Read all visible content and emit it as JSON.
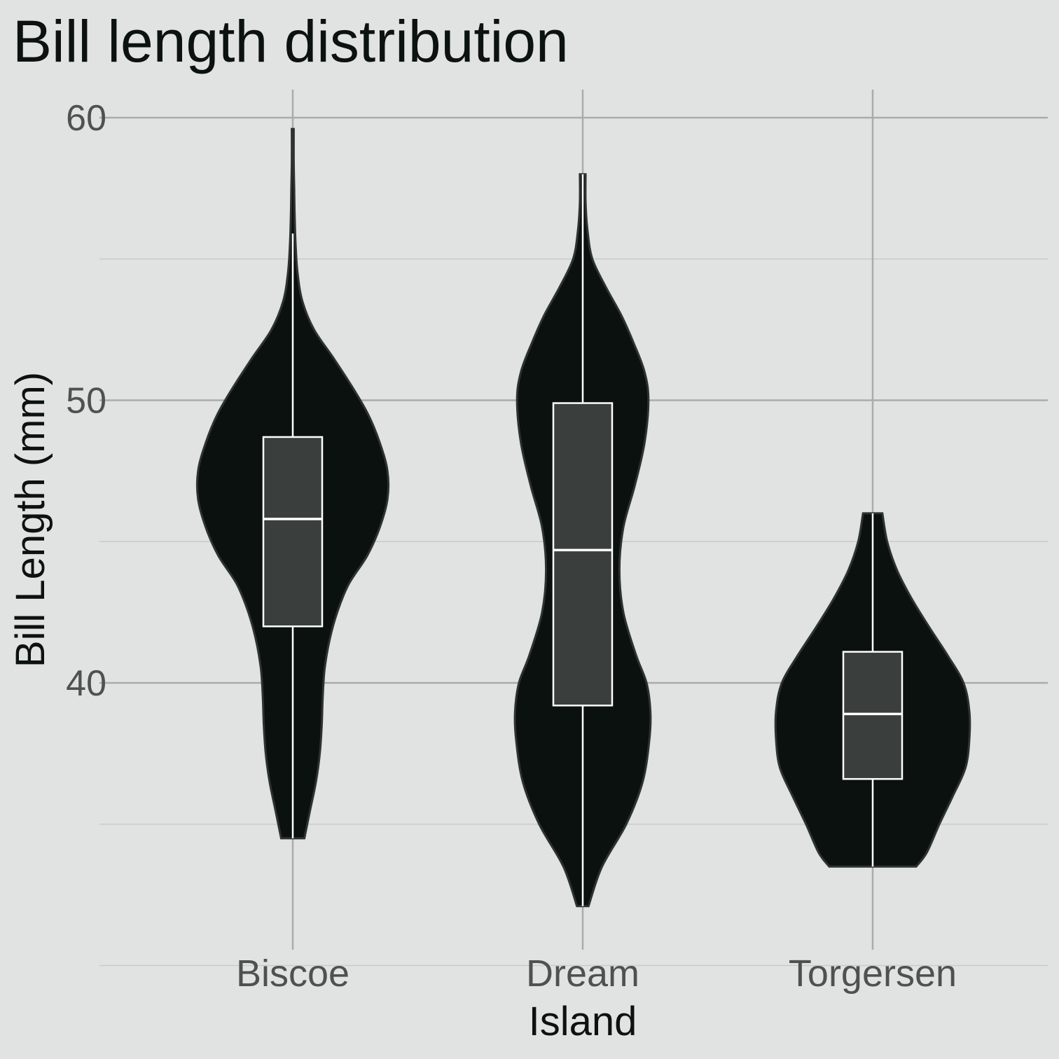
{
  "chart_data": {
    "type": "violin",
    "title": "Bill length distribution",
    "xlabel": "Island",
    "ylabel": "Bill Length (mm)",
    "ylim": [
      29.5,
      61
    ],
    "yticks": [
      40,
      50,
      60
    ],
    "grid": true,
    "colors": {
      "background": "#e1e3e2",
      "violin_fill": "#0a110e",
      "violin_stroke": "#2e3331",
      "box_fill": "#3a3f3d",
      "box_stroke": "#ffffff",
      "grid_major": "#a9acab",
      "grid_minor": "#c8cbca"
    },
    "categories": [
      "Biscoe",
      "Dream",
      "Torgersen"
    ],
    "series": [
      {
        "category": "Biscoe",
        "min": 34.5,
        "max": 59.6,
        "box": {
          "q1": 42.0,
          "median": 45.8,
          "q3": 48.7,
          "whisker_low": 34.5,
          "whisker_high": 55.9
        },
        "density": [
          [
            34.5,
            0.12
          ],
          [
            35.5,
            0.18
          ],
          [
            36.5,
            0.24
          ],
          [
            37.5,
            0.28
          ],
          [
            38.5,
            0.3
          ],
          [
            39.5,
            0.31
          ],
          [
            40.5,
            0.33
          ],
          [
            41.5,
            0.38
          ],
          [
            42.5,
            0.46
          ],
          [
            43.5,
            0.58
          ],
          [
            44.5,
            0.77
          ],
          [
            45.5,
            0.9
          ],
          [
            46.5,
            0.98
          ],
          [
            47.5,
            0.98
          ],
          [
            48.5,
            0.9
          ],
          [
            49.5,
            0.78
          ],
          [
            50.5,
            0.61
          ],
          [
            51.5,
            0.42
          ],
          [
            52.5,
            0.22
          ],
          [
            53.5,
            0.1
          ],
          [
            54.5,
            0.05
          ],
          [
            55.5,
            0.03
          ],
          [
            56.5,
            0.02
          ],
          [
            57.5,
            0.015
          ],
          [
            58.5,
            0.01
          ],
          [
            59.6,
            0.01
          ]
        ]
      },
      {
        "category": "Dream",
        "min": 32.1,
        "max": 58.0,
        "box": {
          "q1": 39.2,
          "median": 44.7,
          "q3": 49.9,
          "whisker_low": 32.1,
          "whisker_high": 58.0
        },
        "density": [
          [
            32.1,
            0.06
          ],
          [
            33.5,
            0.2
          ],
          [
            35.0,
            0.45
          ],
          [
            36.5,
            0.62
          ],
          [
            38.0,
            0.69
          ],
          [
            39.0,
            0.7
          ],
          [
            40.0,
            0.66
          ],
          [
            41.0,
            0.55
          ],
          [
            42.5,
            0.42
          ],
          [
            44.0,
            0.38
          ],
          [
            45.5,
            0.42
          ],
          [
            47.0,
            0.54
          ],
          [
            48.5,
            0.64
          ],
          [
            50.0,
            0.68
          ],
          [
            51.0,
            0.64
          ],
          [
            52.0,
            0.53
          ],
          [
            53.0,
            0.4
          ],
          [
            54.0,
            0.24
          ],
          [
            55.0,
            0.1
          ],
          [
            56.0,
            0.05
          ],
          [
            57.0,
            0.03
          ],
          [
            58.0,
            0.03
          ]
        ]
      },
      {
        "category": "Torgersen",
        "min": 33.5,
        "max": 46.0,
        "box": {
          "q1": 36.6,
          "median": 38.9,
          "q3": 41.1,
          "whisker_low": 33.5,
          "whisker_high": 46.0
        },
        "density": [
          [
            33.5,
            0.45
          ],
          [
            34.0,
            0.56
          ],
          [
            35.0,
            0.69
          ],
          [
            36.0,
            0.83
          ],
          [
            37.0,
            0.96
          ],
          [
            38.0,
            1.0
          ],
          [
            39.0,
            1.0
          ],
          [
            40.0,
            0.94
          ],
          [
            41.0,
            0.77
          ],
          [
            42.0,
            0.58
          ],
          [
            43.0,
            0.4
          ],
          [
            44.0,
            0.25
          ],
          [
            45.0,
            0.15
          ],
          [
            46.0,
            0.1
          ]
        ]
      }
    ]
  }
}
